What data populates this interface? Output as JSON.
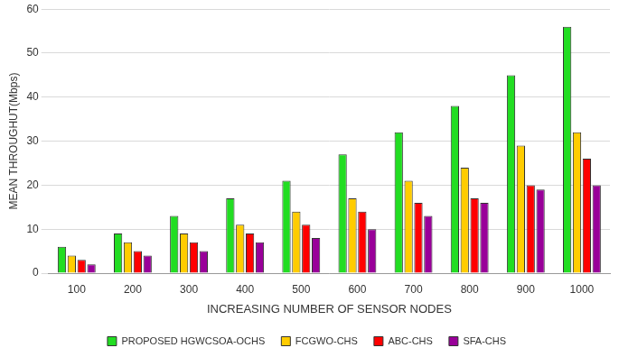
{
  "chart_data": {
    "type": "bar",
    "x_label": "INCREASING NUMBER OF SENSOR NODES",
    "y_label": "MEAN THROUGHUT(Mbps)",
    "categories": [
      "100",
      "200",
      "300",
      "400",
      "500",
      "600",
      "700",
      "800",
      "900",
      "1000"
    ],
    "series": [
      {
        "name": "PROPOSED HGWCSOA-OCHS",
        "color": "#22dd22",
        "values": [
          6,
          9,
          13,
          17,
          21,
          27,
          32,
          38,
          45,
          56
        ]
      },
      {
        "name": "FCGWO-CHS",
        "color": "#ffcc00",
        "values": [
          4,
          7,
          9,
          11,
          14,
          17,
          21,
          24,
          29,
          32
        ]
      },
      {
        "name": "ABC-CHS",
        "color": "#ff0000",
        "values": [
          3,
          5,
          7,
          9,
          11,
          14,
          16,
          17,
          20,
          26
        ]
      },
      {
        "name": "SFA-CHS",
        "color": "#990099",
        "values": [
          2,
          4,
          5,
          7,
          8,
          10,
          13,
          16,
          19,
          20
        ]
      }
    ],
    "ylim": [
      0,
      60
    ],
    "yticks": [
      0,
      10,
      20,
      30,
      40,
      50,
      60
    ],
    "grid": true,
    "legend": "bottom"
  }
}
